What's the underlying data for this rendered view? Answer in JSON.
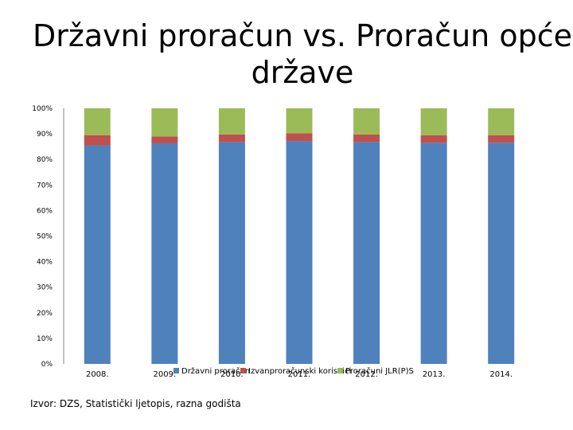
{
  "title": "Državni proračun vs. Proračun opće države",
  "source_note": "Izvor: DZS, Statistički ljetopis, razna godišta",
  "chart_data": {
    "type": "bar",
    "stacked": true,
    "percent": true,
    "categories": [
      "2008.",
      "2009.",
      "2010.",
      "2011.",
      "2012.",
      "2013.",
      "2014."
    ],
    "series": [
      {
        "name": "Državni proračun",
        "values": [
          85.5,
          86.3,
          86.8,
          87.2,
          86.8,
          86.5,
          86.5
        ],
        "color": "#4f81bd"
      },
      {
        "name": "Izvanproračunski korisnici",
        "values": [
          4.0,
          2.7,
          3.0,
          3.0,
          3.0,
          3.0,
          3.0
        ],
        "color": "#c0504d"
      },
      {
        "name": "Proračuni JLR(P)S",
        "values": [
          10.5,
          11.0,
          10.2,
          9.8,
          10.2,
          10.5,
          10.5
        ],
        "color": "#9bbb59"
      }
    ],
    "yticks": [
      "0%",
      "10%",
      "20%",
      "30%",
      "40%",
      "50%",
      "60%",
      "70%",
      "80%",
      "90%",
      "100%"
    ],
    "ylim": [
      0,
      100
    ],
    "legend": "bottom",
    "grid": false
  }
}
